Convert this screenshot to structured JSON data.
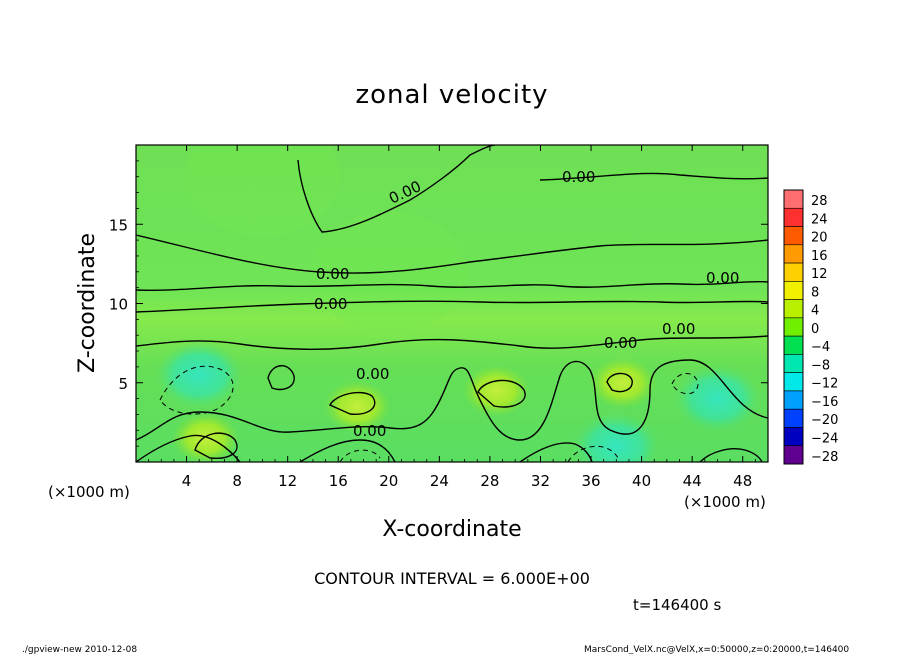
{
  "chart_data": {
    "type": "heatmap",
    "title": "zonal velocity",
    "xlabel": "X-coordinate",
    "ylabel": "Z-coordinate",
    "x_unit_label": "(×1000 m)",
    "z_unit_label": "(×1000 m)",
    "xlim": [
      0,
      50
    ],
    "ylim": [
      0,
      20
    ],
    "x_ticks": [
      4,
      8,
      12,
      16,
      20,
      24,
      28,
      32,
      36,
      40,
      44,
      48
    ],
    "y_ticks": [
      5,
      10,
      15
    ],
    "colorbar_levels": [
      28,
      24,
      20,
      16,
      12,
      8,
      4,
      0,
      -4,
      -8,
      -12,
      -16,
      -20,
      -24,
      -28
    ],
    "colorbar_colors": [
      "#ff6f6f",
      "#ff3030",
      "#ff5a00",
      "#ff9a00",
      "#ffd000",
      "#f0f000",
      "#b8f000",
      "#70f000",
      "#00e050",
      "#00e6b0",
      "#00e8e8",
      "#00a0ff",
      "#0040ff",
      "#0000c0",
      "#600090"
    ],
    "contour_label": "0.00",
    "contour_interval_text": "CONTOUR INTERVAL = 6.000E+00",
    "time_text": "t=146400 s",
    "footer_left": "./gpview-new   2010-12-08",
    "footer_right": "MarsCond_VelX.nc@VelX,x=0:50000,z=0:20000,t=146400",
    "cells": [
      {
        "x": 5.5,
        "z": 1.5,
        "value": 6
      },
      {
        "x": 17.5,
        "z": 3.5,
        "value": 6
      },
      {
        "x": 28.5,
        "z": 4.5,
        "value": 6
      },
      {
        "x": 38.5,
        "z": 5.0,
        "value": 6
      },
      {
        "x": 5.0,
        "z": 5.5,
        "value": -4
      },
      {
        "x": 38.0,
        "z": 1.0,
        "value": -4
      },
      {
        "x": 46.0,
        "z": 4.0,
        "value": -4
      },
      {
        "x": 20.0,
        "z": 12.0,
        "value": 2
      },
      {
        "x": 10.0,
        "z": 18.0,
        "value": 2
      }
    ]
  }
}
